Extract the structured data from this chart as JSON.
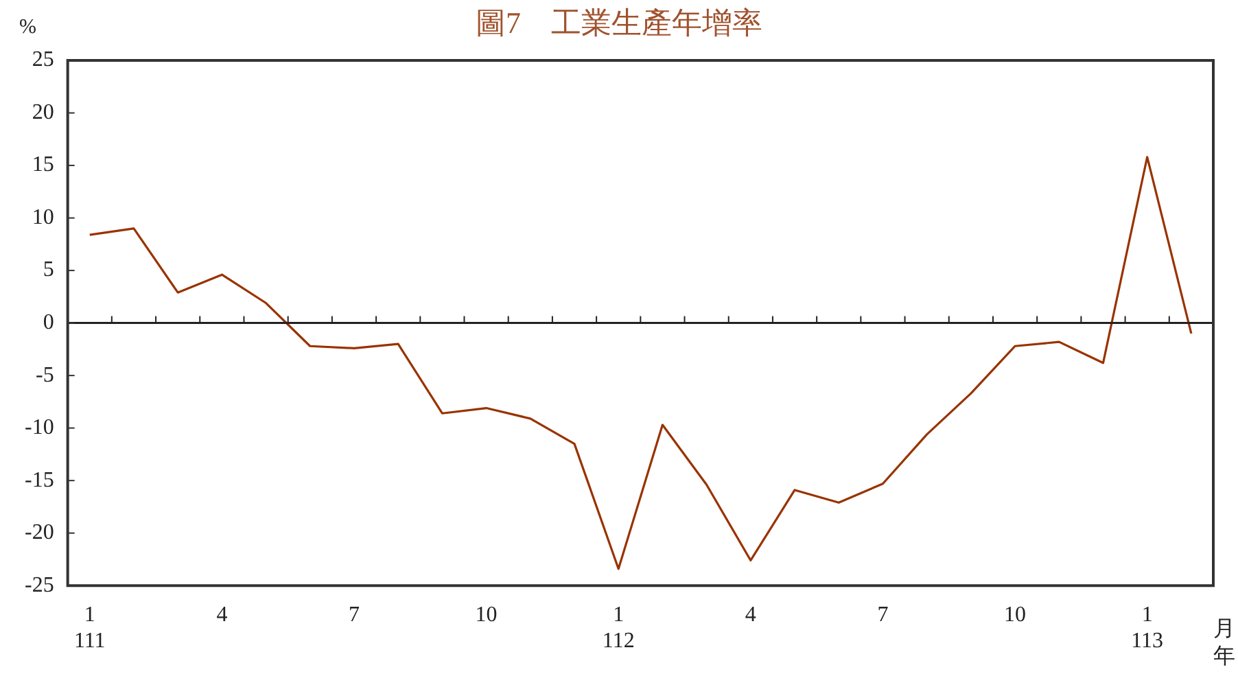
{
  "chart_data": {
    "type": "line",
    "title": "圖7　工業生產年增率",
    "ylabel": "%",
    "xlabel": "月年",
    "categories": [
      "1\n111",
      null,
      null,
      "4",
      null,
      null,
      "7",
      null,
      null,
      "10",
      null,
      null,
      "1\n112",
      null,
      null,
      "4",
      null,
      null,
      "7",
      null,
      null,
      "10",
      null,
      null,
      "1\n113",
      null
    ],
    "series": [
      {
        "color": "#993300",
        "values": [
          8.4,
          9.0,
          2.9,
          4.6,
          1.9,
          -2.2,
          -2.4,
          -2.0,
          -8.6,
          -8.1,
          -9.1,
          -11.5,
          -23.4,
          -9.7,
          -15.4,
          -22.6,
          -15.9,
          -17.1,
          -15.3,
          -10.6,
          -6.7,
          -2.2,
          -1.8,
          -3.8,
          15.8,
          -1.0
        ]
      }
    ],
    "ylim": [
      -25,
      25
    ],
    "yticks": [
      -25,
      -20,
      -15,
      -10,
      -5,
      0,
      5,
      10,
      15,
      20,
      25
    ],
    "ref_lines": [
      {
        "axis": "y",
        "value": 0,
        "color": "#222222"
      }
    ],
    "grid": false,
    "legend": false,
    "marker": "none",
    "line_style": "solid"
  }
}
